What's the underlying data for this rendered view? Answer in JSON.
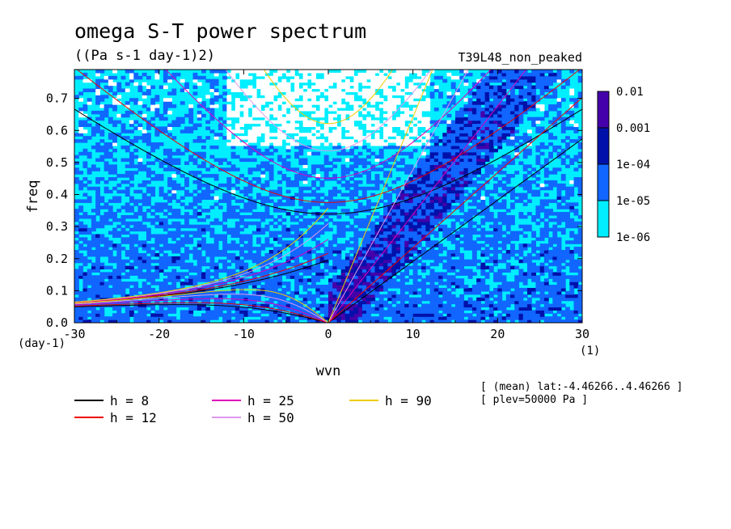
{
  "chart_data": {
    "type": "heatmap",
    "title": "omega S-T power spectrum",
    "subtitle": "((Pa s-1 day-1)2)",
    "run_label": "T39L48_non_peaked",
    "xlabel": "wvn",
    "ylabel": "freq",
    "x_unit": "(1)",
    "y_unit": "(day-1)",
    "xlim": [
      -30,
      30
    ],
    "ylim": [
      0,
      0.79
    ],
    "x_ticks": [
      "-30",
      "-20",
      "-10",
      "0",
      "10",
      "20",
      "30"
    ],
    "y_ticks": [
      "0.0",
      "0.1",
      "0.2",
      "0.3",
      "0.4",
      "0.5",
      "0.6",
      "0.7"
    ],
    "color_scale": {
      "type": "log",
      "levels": [
        "0.01",
        "0.001",
        "1e-04",
        "1e-05",
        "1e-06"
      ],
      "band_colors": [
        "#4400aa",
        "#0011aa",
        "#1166ff",
        "#00eeff"
      ],
      "background_color": "#ffffff"
    },
    "dispersion_curves": [
      {
        "name": "h =  8",
        "color": "#000000"
      },
      {
        "name": "h = 12",
        "color": "#ee0000"
      },
      {
        "name": "h = 25",
        "color": "#dd00bb"
      },
      {
        "name": "h = 50",
        "color": "#dd99ee"
      },
      {
        "name": "h = 90",
        "color": "#eecc00"
      }
    ],
    "notes": [
      "[ (mean) lat:-4.46266..4.46266 ]",
      "[ plev=50000 Pa ]"
    ]
  }
}
